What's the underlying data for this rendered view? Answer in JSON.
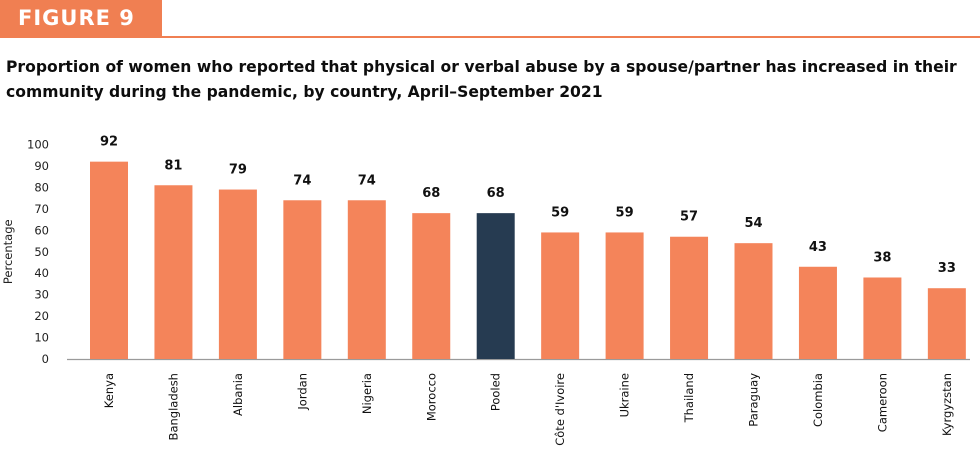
{
  "figure_label": "FIGURE 9",
  "chart_data": {
    "type": "bar",
    "title": "Proportion of women who reported that physical or verbal abuse by a spouse/partner has increased in their community during the pandemic, by country, April–September 2021",
    "ylabel": "Percentage",
    "xlabel": "",
    "ylim": [
      0,
      100
    ],
    "yticks": [
      0,
      10,
      20,
      30,
      40,
      50,
      60,
      70,
      80,
      90,
      100
    ],
    "grid": false,
    "categories": [
      "Kenya",
      "Bangladesh",
      "Albania",
      "Jordan",
      "Nigeria",
      "Morocco",
      "Pooled",
      "Côte d'Ivoire",
      "Ukraine",
      "Thailand",
      "Paraguay",
      "Colombia",
      "Cameroon",
      "Kyrgyzstan"
    ],
    "values": [
      92,
      81,
      79,
      74,
      74,
      68,
      68,
      59,
      59,
      57,
      54,
      43,
      38,
      33
    ],
    "data_labels": [
      "92",
      "81",
      "79",
      "74",
      "74",
      "68",
      "68",
      "59",
      "59",
      "57",
      "54",
      "43",
      "38",
      "33"
    ],
    "colors": {
      "bar": "#f4845a",
      "highlight": "#263b51",
      "accent": "#f07f52"
    },
    "highlight_category": "Pooled"
  }
}
